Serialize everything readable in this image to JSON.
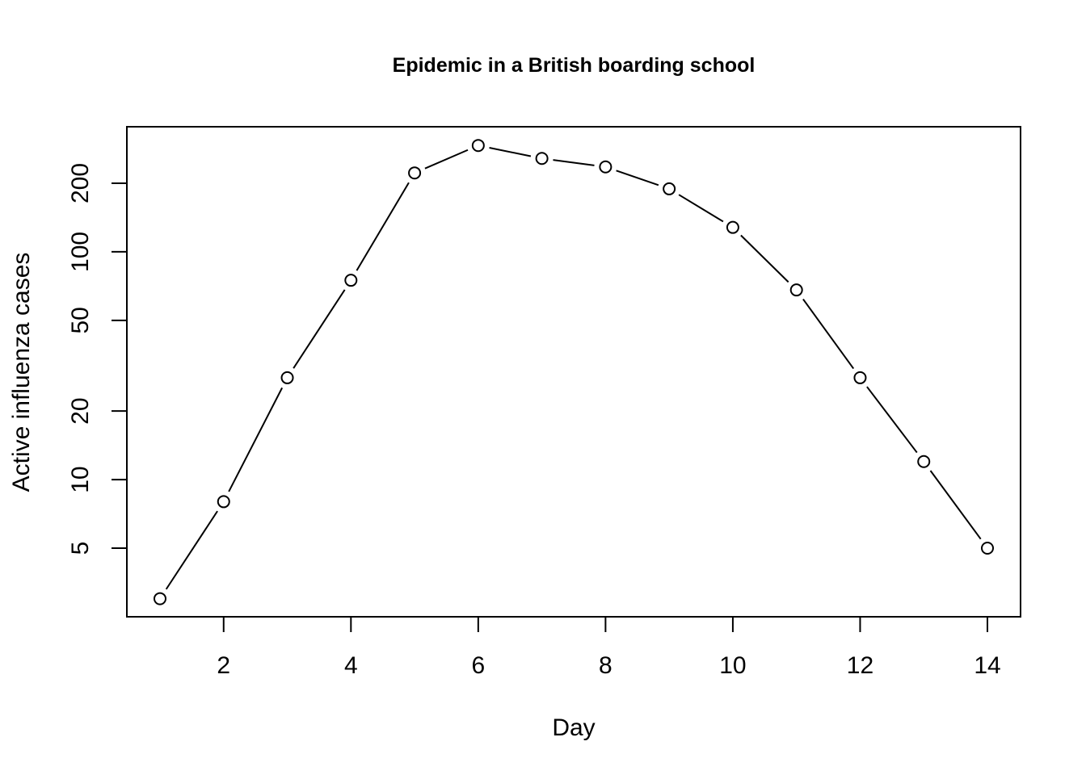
{
  "chart_data": {
    "type": "line",
    "title": "Epidemic in a British boarding school",
    "xlabel": "Day",
    "ylabel": "Active influenza cases",
    "y_scale": "log",
    "grid": false,
    "legend": "none",
    "colors": {
      "line": "#000000",
      "marker_fill": "#ffffff",
      "marker_stroke": "#000000",
      "frame": "#000000"
    },
    "x_ticks": [
      2,
      4,
      6,
      8,
      10,
      12,
      14
    ],
    "x_tick_labels": [
      "2",
      "4",
      "6",
      "8",
      "10",
      "12",
      "14"
    ],
    "y_ticks": [
      5,
      10,
      20,
      50,
      100,
      200
    ],
    "y_tick_labels": [
      "5",
      "10",
      "20",
      "50",
      "100",
      "200"
    ],
    "x": [
      1,
      2,
      3,
      4,
      5,
      6,
      7,
      8,
      9,
      10,
      11,
      12,
      13,
      14
    ],
    "series": [
      {
        "values": [
          3,
          8,
          28,
          75,
          222,
          293,
          257,
          236,
          189,
          128,
          68,
          28,
          12,
          5
        ]
      }
    ]
  }
}
